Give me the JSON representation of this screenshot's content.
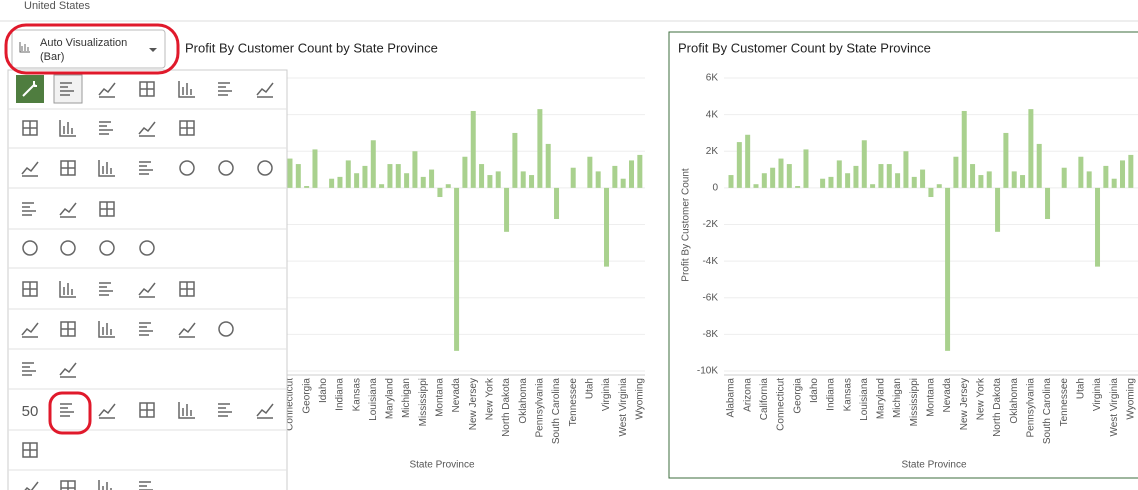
{
  "header": {
    "title": "United States"
  },
  "dropdown": {
    "label_line1": "Auto Visualization",
    "label_line2": "(Bar)"
  },
  "menu": {
    "tile_label": "50"
  },
  "chart_data": [
    {
      "type": "bar",
      "title": "Profit By Customer Count by State Province",
      "x_label": "State Province",
      "categories": [
        "Alabama",
        null,
        "Arizona",
        null,
        "California",
        null,
        "Connecticut",
        null,
        "Georgia",
        null,
        "Idaho",
        null,
        "Indiana",
        null,
        "Kansas",
        null,
        "Louisiana",
        null,
        "Maryland",
        null,
        "Michigan",
        null,
        "Mississippi",
        null,
        "Montana",
        null,
        "Nevada",
        null,
        "New Jersey",
        null,
        "New York",
        null,
        "North Dakota",
        null,
        "Oklahoma",
        null,
        "Pennsylvania",
        null,
        "South Carolina",
        null,
        "Tennessee",
        null,
        "Utah",
        null,
        "Virginia",
        null,
        "West Virginia",
        null,
        "Wyoming"
      ],
      "values": [
        700,
        2500,
        2900,
        200,
        800,
        1100,
        1600,
        1300,
        100,
        2100,
        0,
        500,
        600,
        1500,
        800,
        1200,
        2600,
        200,
        1300,
        1300,
        800,
        2000,
        600,
        1000,
        -500,
        200,
        -8900,
        1700,
        4200,
        1300,
        700,
        900,
        -2400,
        3000,
        900,
        700,
        4300,
        2400,
        -1700,
        0,
        1100,
        0,
        1700,
        900,
        -4300,
        1200,
        500,
        1500,
        1800
      ],
      "color": "#a9d18e",
      "ylim": [
        -10000,
        6000
      ],
      "yticks": [
        {
          "value": 6000,
          "label": "6K"
        },
        {
          "value": 4000,
          "label": "4K"
        },
        {
          "value": 2000,
          "label": "2K"
        },
        0,
        {
          "value": -2000,
          "label": "-2K"
        },
        {
          "value": -4000,
          "label": "-4K"
        },
        {
          "value": -6000,
          "label": "-6K"
        },
        {
          "value": -8000,
          "label": "-8K"
        },
        {
          "value": -10000,
          "label": "-10K"
        }
      ],
      "grid": true
    },
    {
      "type": "bar",
      "title": "Profit By Customer Count by State Province",
      "x_label": "State Province",
      "y_label": "Profit By Customer Count",
      "categories": [
        "Alabama",
        null,
        "Arizona",
        null,
        "California",
        null,
        "Connecticut",
        null,
        "Georgia",
        null,
        "Idaho",
        null,
        "Indiana",
        null,
        "Kansas",
        null,
        "Louisiana",
        null,
        "Maryland",
        null,
        "Michigan",
        null,
        "Mississippi",
        null,
        "Montana",
        null,
        "Nevada",
        null,
        "New Jersey",
        null,
        "New York",
        null,
        "North Dakota",
        null,
        "Oklahoma",
        null,
        "Pennsylvania",
        null,
        "South Carolina",
        null,
        "Tennessee",
        null,
        "Utah",
        null,
        "Virginia",
        null,
        "West Virginia",
        null,
        "Wyoming"
      ],
      "values": [
        700,
        2500,
        2900,
        200,
        800,
        1100,
        1600,
        1300,
        100,
        2100,
        0,
        500,
        600,
        1500,
        800,
        1200,
        2600,
        200,
        1300,
        1300,
        800,
        2000,
        600,
        1000,
        -500,
        200,
        -8900,
        1700,
        4200,
        1300,
        700,
        900,
        -2400,
        3000,
        900,
        700,
        4300,
        2400,
        -1700,
        0,
        1100,
        0,
        1700,
        900,
        -4300,
        1200,
        500,
        1500,
        1800
      ],
      "color": "#a9d18e",
      "ylim": [
        -10000,
        6000
      ],
      "yticks": [
        {
          "value": 6000,
          "label": "6K"
        },
        {
          "value": 4000,
          "label": "4K"
        },
        {
          "value": 2000,
          "label": "2K"
        },
        0,
        {
          "value": -2000,
          "label": "-2K"
        },
        {
          "value": -4000,
          "label": "-4K"
        },
        {
          "value": -6000,
          "label": "-6K"
        },
        {
          "value": -8000,
          "label": "-8K"
        },
        {
          "value": -10000,
          "label": "-10K"
        }
      ],
      "grid": true
    }
  ]
}
